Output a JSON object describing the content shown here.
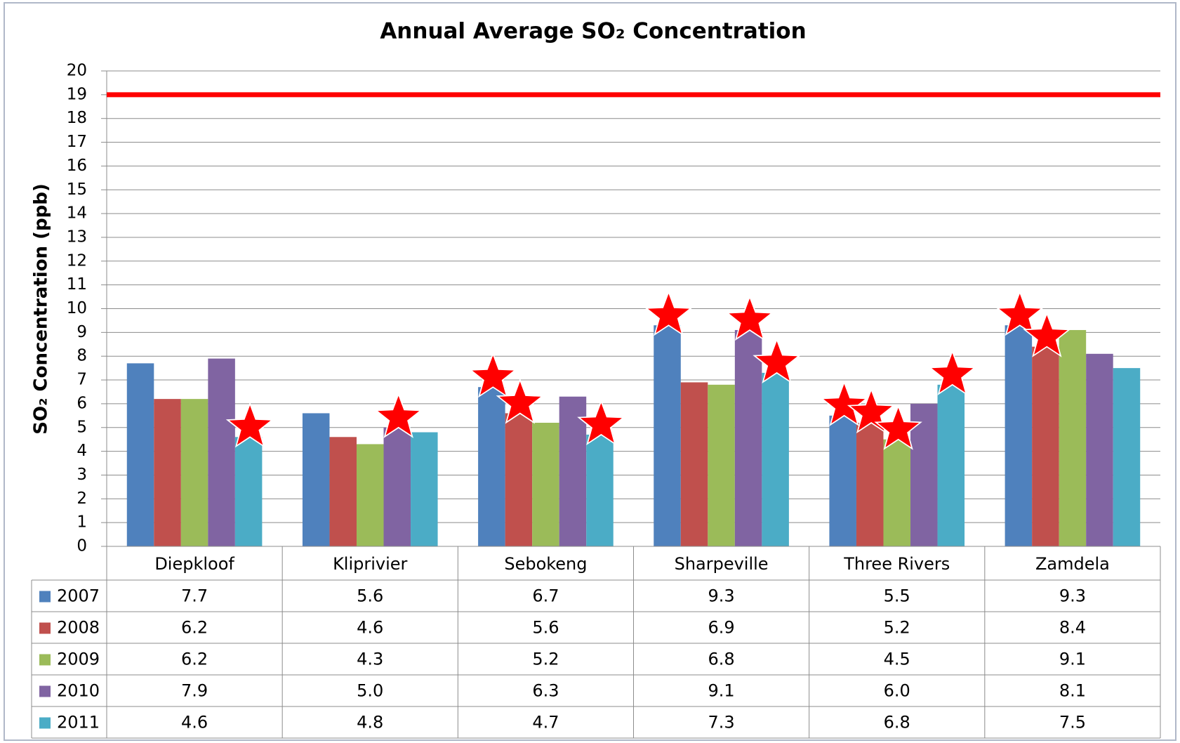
{
  "chart_data": {
    "type": "bar",
    "title": "Annual Average SO₂ Concentration",
    "y_label": "SO₂ Concentration (ppb)",
    "categories": [
      "Diepkloof",
      "Kliprivier",
      "Sebokeng",
      "Sharpeville",
      "Three Rivers",
      "Zamdela"
    ],
    "series": [
      {
        "name": "2007",
        "color": "#4f81bd",
        "values": [
          7.7,
          5.6,
          6.7,
          9.3,
          5.5,
          9.3
        ],
        "stars": [
          2,
          3,
          4,
          5
        ]
      },
      {
        "name": "2008",
        "color": "#c0504d",
        "values": [
          6.2,
          4.6,
          5.6,
          6.9,
          5.2,
          8.4
        ],
        "stars": [
          2,
          4,
          5
        ]
      },
      {
        "name": "2009",
        "color": "#9bbb59",
        "values": [
          6.2,
          4.3,
          5.2,
          6.8,
          4.5,
          9.1
        ],
        "stars": [
          4
        ]
      },
      {
        "name": "2010",
        "color": "#8064a2",
        "values": [
          7.9,
          5,
          6.3,
          9.1,
          6,
          8.1
        ],
        "value_labels": [
          "7.9",
          "5.0",
          "6.3",
          "9.1",
          "6.0",
          "8.1"
        ],
        "stars": [
          1,
          3
        ]
      },
      {
        "name": "2011",
        "color": "#4bacc6",
        "values": [
          4.6,
          4.8,
          4.7,
          7.3,
          6.8,
          7.5
        ],
        "stars": [
          0,
          2,
          3,
          4
        ]
      }
    ],
    "reference_line": {
      "value": 19,
      "color": "#ff0000"
    },
    "star_color": "#ff0000",
    "ylim": [
      0,
      20
    ],
    "yticks": [
      0,
      1,
      2,
      3,
      4,
      5,
      6,
      7,
      8,
      9,
      10,
      11,
      12,
      13,
      14,
      15,
      16,
      17,
      18,
      19,
      20
    ],
    "grid": true,
    "data_table": true
  }
}
